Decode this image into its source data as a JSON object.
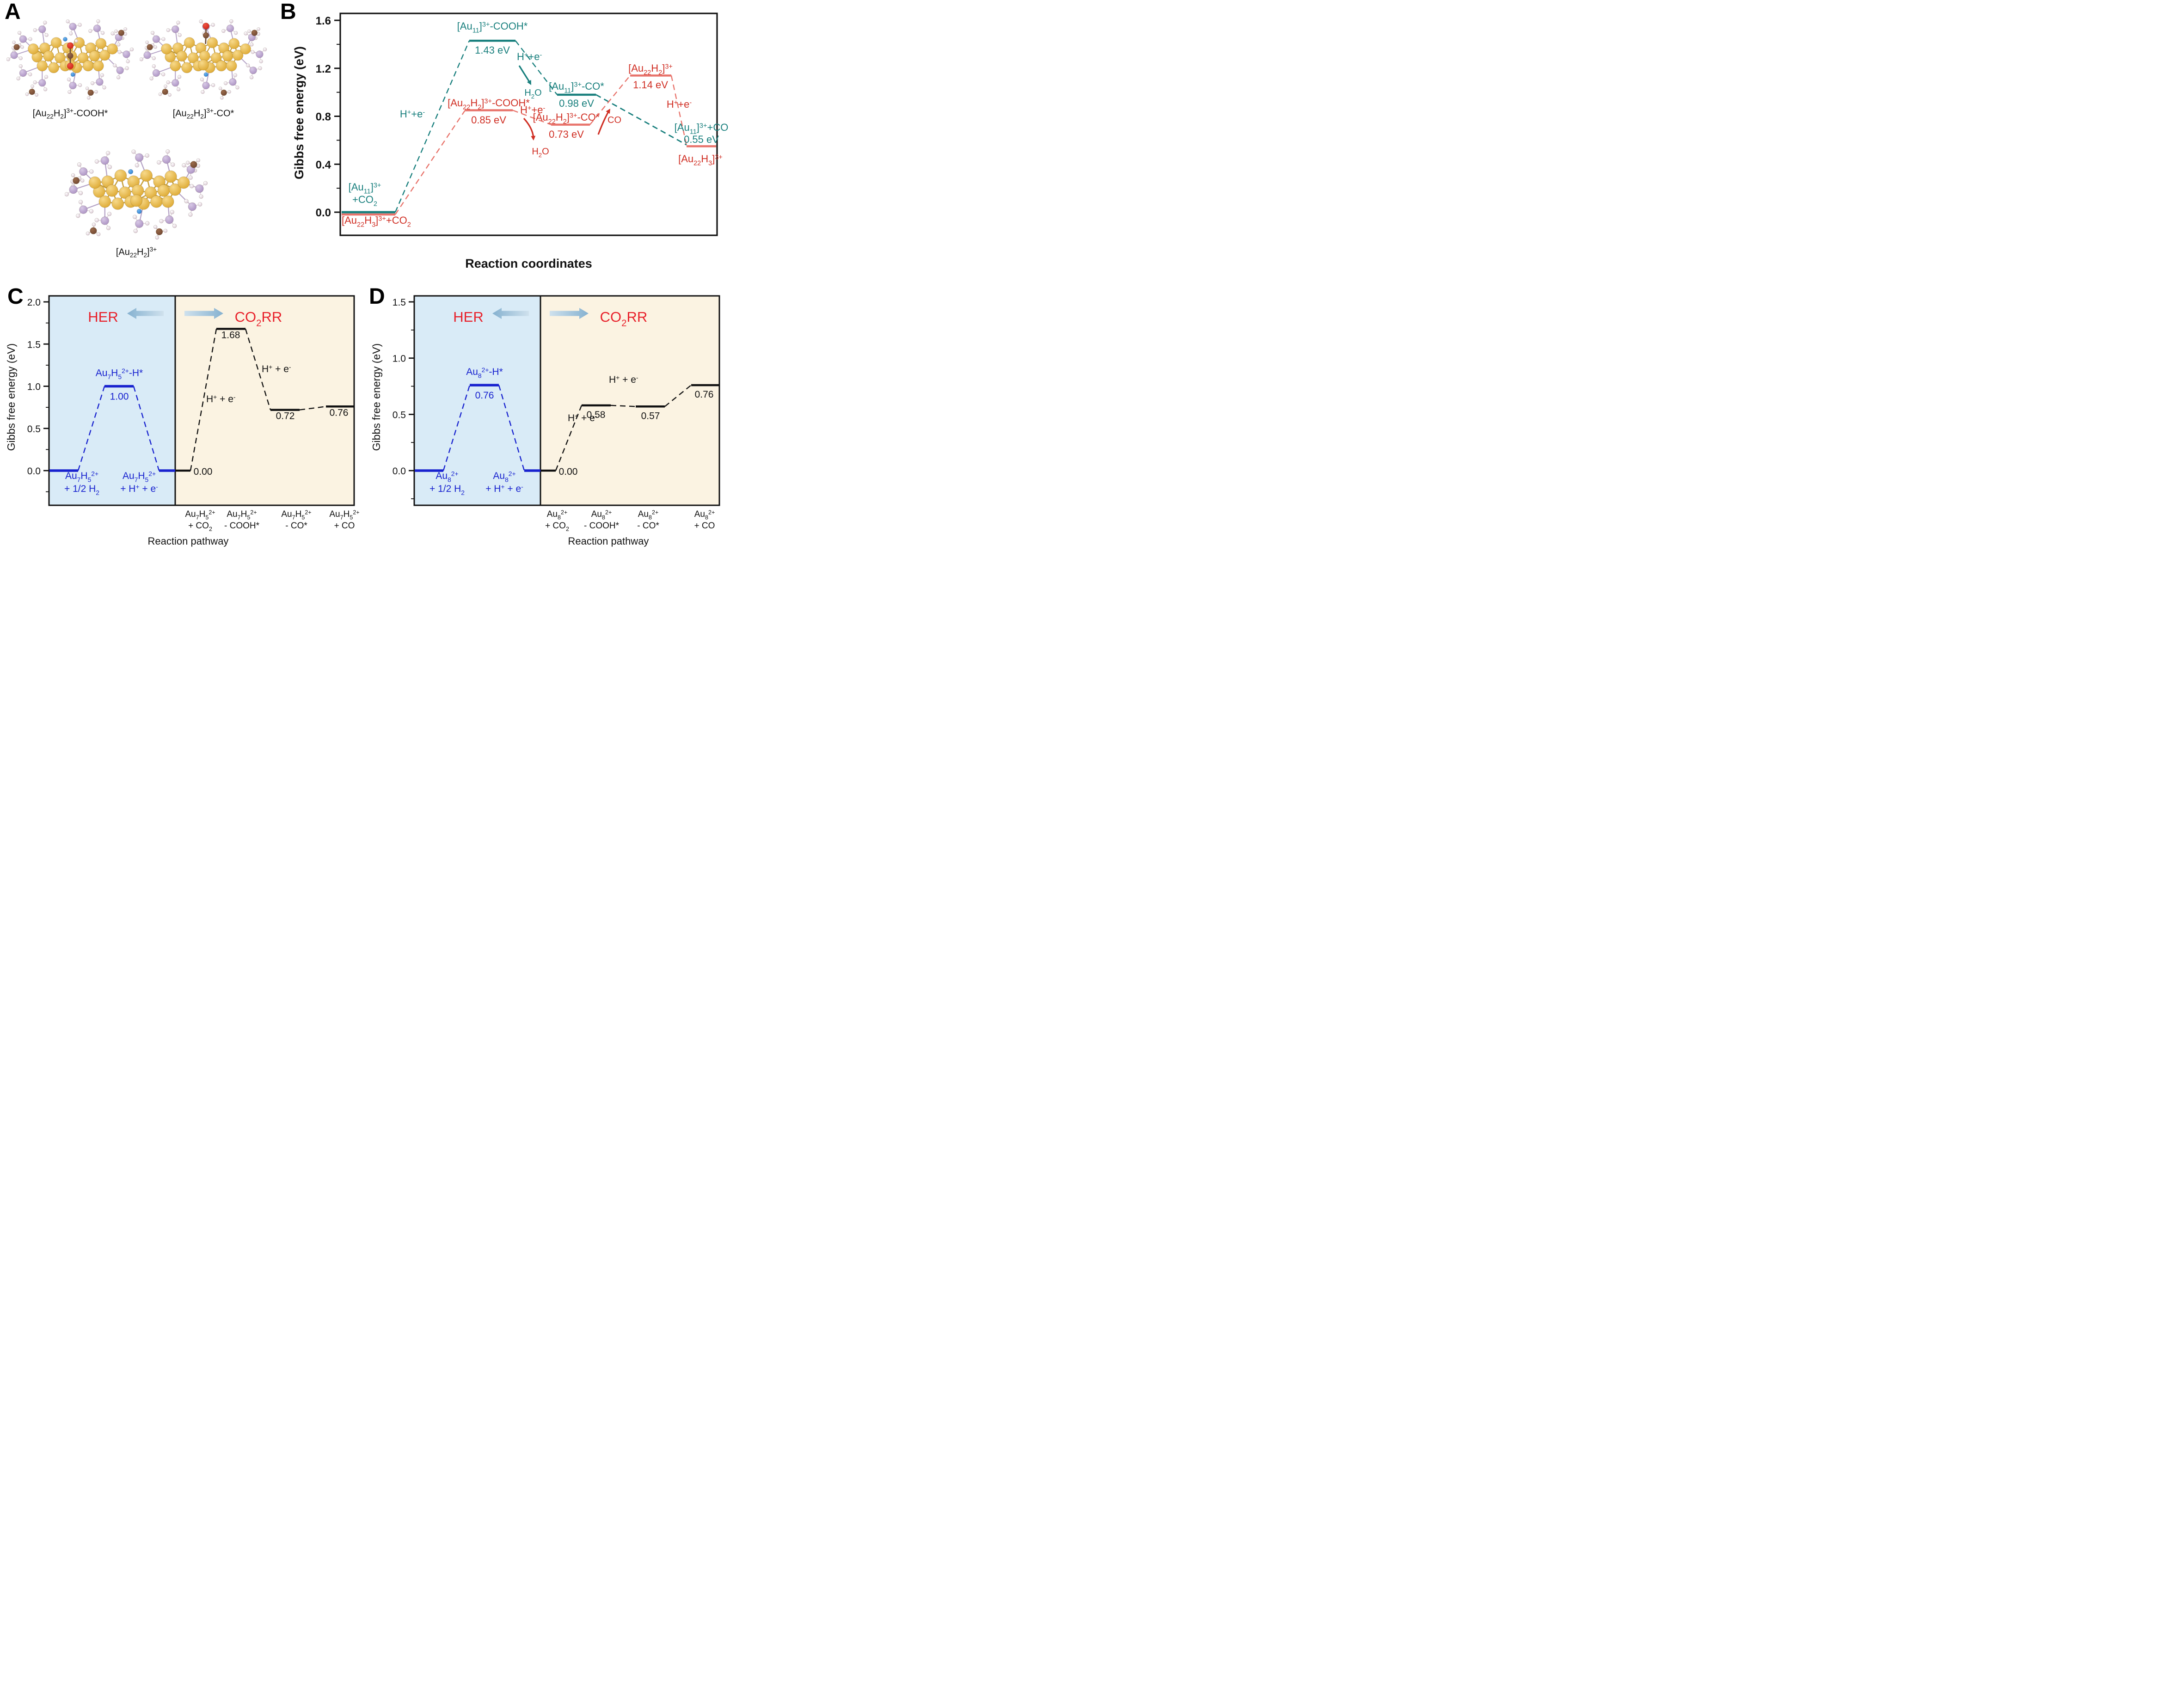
{
  "panels": {
    "A": {
      "letter": "A",
      "molecules": [
        {
          "name": "au22h2-cooh-structure",
          "formula": "[Au_{22}H_{2}]^{3+}-COOH*",
          "adsorbate": "COOH"
        },
        {
          "name": "au22h2-co-structure",
          "formula": "[Au_{22}H_{2}]^{3+}-CO*",
          "adsorbate": "CO"
        },
        {
          "name": "au22h2-structure",
          "formula": "[Au_{22}H_{2}]^{3+}",
          "adsorbate": "none"
        }
      ],
      "atom_colors": {
        "gold": "#dca72e",
        "phosphine": "#a98fc1",
        "hydrogen": "#f2e4ec",
        "carbon": "#6f4630",
        "oxygen": "#cf2115",
        "hydride": "#2b7fd0"
      }
    },
    "B": {
      "letter": "B"
    },
    "C": {
      "letter": "C"
    },
    "D": {
      "letter": "D"
    }
  },
  "chart_data": [
    {
      "id": "B",
      "type": "energy-diagram",
      "xlabel": "Reaction coordinates",
      "ylabel": "Gibbs free energy (eV)",
      "ylim": [
        -0.2,
        1.6
      ],
      "yticks": [
        0.0,
        0.4,
        0.8,
        1.2,
        1.6
      ],
      "series": [
        {
          "name": "Au11 pathway",
          "color": "#187f7d",
          "start_label": "[Au_{11}]^{3+}\n+CO_{2}",
          "levels": [
            {
              "formula": "[Au_{11}]^{3+}+CO_{2}",
              "value": 0.0,
              "value_label": ""
            },
            {
              "formula": "[Au_{11}]^{3+}-COOH*",
              "value": 1.43,
              "value_label": "1.43 eV"
            },
            {
              "formula": "[Au_{11}]^{3+}-CO*",
              "value": 0.98,
              "value_label": "0.98 eV"
            },
            {
              "formula": "[Au_{11}]^{3+}+CO",
              "value": 0.55,
              "value_label": "0.55 eV"
            }
          ],
          "step_labels": [
            "H^{+}+e^{-}",
            "H^{+}+e^{-}"
          ],
          "byproducts": [
            "H_{2}O"
          ]
        },
        {
          "name": "Au22H3 pathway",
          "color": "#d02f24",
          "level_color": "#e8736b",
          "start_label": "[Au_{22}H_{3}]^{3+}+CO_{2}",
          "levels": [
            {
              "formula": "[Au_{22}H_{3}]^{3+}+CO_{2}",
              "value": 0.0,
              "value_label": ""
            },
            {
              "formula": "[Au_{22}H_{2}]^{3+}-COOH*",
              "value": 0.85,
              "value_label": "0.85 eV"
            },
            {
              "formula": "[Au_{22}H_{2}]^{3+}-CO*",
              "value": 0.73,
              "value_label": "0.73 eV"
            },
            {
              "formula": "[Au_{22}H_{2}]^{3+}",
              "value": 1.14,
              "value_label": "1.14 eV"
            },
            {
              "formula": "[Au_{22}H_{3}]^{3+}",
              "value": 0.55,
              "value_label": ""
            }
          ],
          "step_labels": [
            "H^{+}+e^{-}",
            "H^{+}+e^{-}"
          ],
          "byproducts": [
            "H_{2}O",
            "CO"
          ]
        }
      ]
    },
    {
      "id": "C",
      "type": "energy-diagram",
      "xlabel": "Reaction pathway",
      "ylabel": "Gibbs free energy (eV)",
      "ylim": [
        -0.25,
        2.0
      ],
      "yticks": [
        0.0,
        0.5,
        1.0,
        1.5,
        2.0
      ],
      "title_color": "#e8202a",
      "arrow_color": "#9cc3da",
      "her": {
        "title": "HER",
        "color": "#1822cf",
        "bg": "#d9ebf7",
        "levels": [
          {
            "formula": "Au_{7}H_{5}^{2+}\n+ 1/2 H_{2}",
            "value": 0.0,
            "value_label": ""
          },
          {
            "formula": "Au_{7}H_{5}^{2+}-H*",
            "value": 1.0,
            "value_label": "1.00"
          },
          {
            "formula": "Au_{7}H_{5}^{2+}\n+ H^{+} + e^{-}",
            "value": 0.0,
            "value_label": ""
          }
        ]
      },
      "co2rr": {
        "title": "CO_{2}RR",
        "color": "#111111",
        "bg": "#fbf3e2",
        "values": [
          0.0,
          1.68,
          0.72,
          0.76
        ],
        "value_labels": [
          "0.00",
          "1.68",
          "0.72",
          "0.76"
        ],
        "step_labels": [
          "H^{+} + e^{-}",
          "H^{+} + e^{-}"
        ]
      },
      "categories": [
        "Au_{7}H_{5}^{2+}\n+ CO_{2}",
        "Au_{7}H_{5}^{2+}\n- COOH*",
        "Au_{7}H_{5}^{2+}\n- CO*",
        "Au_{7}H_{5}^{2+}\n+ CO"
      ]
    },
    {
      "id": "D",
      "type": "energy-diagram",
      "xlabel": "Reaction pathway",
      "ylabel": "Gibbs free energy (eV)",
      "ylim": [
        -0.25,
        1.5
      ],
      "yticks": [
        0.0,
        0.5,
        1.0,
        1.5
      ],
      "title_color": "#e8202a",
      "arrow_color": "#9cc3da",
      "her": {
        "title": "HER",
        "color": "#1822cf",
        "bg": "#d9ebf7",
        "levels": [
          {
            "formula": "Au_{8}^{2+}\n+ 1/2 H_{2}",
            "value": 0.0,
            "value_label": ""
          },
          {
            "formula": "Au_{8}^{2+}-H*",
            "value": 0.76,
            "value_label": "0.76"
          },
          {
            "formula": "Au_{8}^{2+}\n+ H^{+} + e^{-}",
            "value": 0.0,
            "value_label": ""
          }
        ]
      },
      "co2rr": {
        "title": "CO_{2}RR",
        "color": "#111111",
        "bg": "#fbf3e2",
        "values": [
          0.0,
          0.58,
          0.57,
          0.76
        ],
        "value_labels": [
          "0.00",
          "0.58",
          "0.57",
          "0.76"
        ],
        "step_labels": [
          "H^{+} + e^{-}",
          "H^{+} + e^{-}"
        ]
      },
      "categories": [
        "Au_{8}^{2+}\n+ CO_{2}",
        "Au_{8}^{2+}\n- COOH*",
        "Au_{8}^{2+}\n- CO*",
        "Au_{8}^{2+}\n+ CO"
      ]
    }
  ]
}
